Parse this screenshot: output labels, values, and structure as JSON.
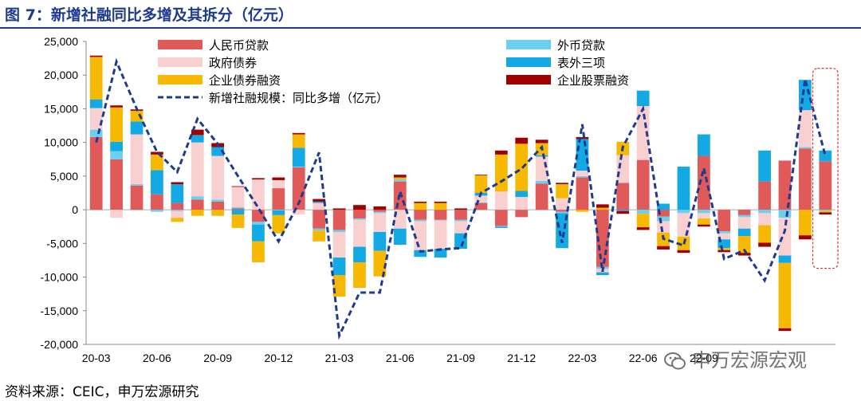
{
  "header": {
    "title": "图 7：新增社融同比多增及其拆分（亿元）"
  },
  "footer": {
    "source": "资料来源：CEIC，申万宏源研究"
  },
  "watermark": {
    "text": "申万宏源宏观"
  },
  "chart_data": {
    "type": "bar",
    "stacked": true,
    "ylim": [
      -20000,
      25000
    ],
    "yticks": [
      25000,
      20000,
      15000,
      10000,
      5000,
      0,
      -5000,
      -10000,
      -15000,
      -20000
    ],
    "ytick_labels": [
      "25,000",
      "20,000",
      "15,000",
      "10,000",
      "5,000",
      "0",
      "-5,000",
      "-10,000",
      "-15,000",
      "-20,000"
    ],
    "x": [
      "20-03",
      "20-04",
      "20-05",
      "20-06",
      "20-07",
      "20-08",
      "20-09",
      "20-10",
      "20-11",
      "20-12",
      "21-01",
      "21-02",
      "21-03",
      "21-04",
      "21-05",
      "21-06",
      "21-07",
      "21-08",
      "21-09",
      "21-10",
      "21-11",
      "21-12",
      "22-01",
      "22-02",
      "22-03",
      "22-04",
      "22-05",
      "22-06",
      "22-07",
      "22-08",
      "22-09",
      "22-10",
      "22-11",
      "22-12",
      "23-01",
      "23-02",
      "23-03"
    ],
    "xtick_labels": [
      {
        "index": 0,
        "label": "20-03"
      },
      {
        "index": 3,
        "label": "20-06"
      },
      {
        "index": 6,
        "label": "20-09"
      },
      {
        "index": 9,
        "label": "20-12"
      },
      {
        "index": 12,
        "label": "21-03"
      },
      {
        "index": 15,
        "label": "21-06"
      },
      {
        "index": 18,
        "label": "21-09"
      },
      {
        "index": 21,
        "label": "21-12"
      },
      {
        "index": 24,
        "label": "22-03"
      },
      {
        "index": 27,
        "label": "22-06"
      },
      {
        "index": 30,
        "label": "22-09"
      }
    ],
    "series": [
      {
        "name": "人民币贷款",
        "color": "#e05a5a",
        "legend_col": 0,
        "legend_row": 0,
        "values": [
          10800,
          7500,
          3600,
          2300,
          1000,
          1500,
          1200,
          200,
          -1800,
          3200,
          6300,
          -2800,
          -3000,
          -1300,
          -300,
          4200,
          -1500,
          -1500,
          -1500,
          1000,
          -2400,
          -1100,
          3900,
          -300,
          4800,
          -8500,
          4000,
          7400,
          -1000,
          0,
          8000,
          -3200,
          -800,
          4200,
          7300,
          9100,
          7200
        ]
      },
      {
        "name": "外币贷款",
        "color": "#6bd0ef",
        "legend_col": 1,
        "legend_row": 0,
        "values": [
          1100,
          1200,
          200,
          -300,
          -200,
          500,
          300,
          200,
          -400,
          -100,
          100,
          -300,
          -300,
          -200,
          -200,
          300,
          -200,
          -100,
          -200,
          100,
          -100,
          0,
          400,
          -200,
          200,
          -300,
          0,
          -600,
          -700,
          -500,
          -500,
          -300,
          -300,
          -500,
          -1200,
          200,
          -200
        ]
      },
      {
        "name": "政府债券",
        "color": "#f8d0d0",
        "legend_col": 0,
        "legend_row": 1,
        "values": [
          3200,
          -1200,
          7400,
          0,
          -1000,
          8000,
          6500,
          3000,
          4500,
          1200,
          -700,
          1000,
          -3800,
          -4000,
          -2800,
          -2800,
          -4300,
          -4200,
          -1800,
          1000,
          2700,
          1900,
          3600,
          1700,
          800,
          -500,
          4100,
          8000,
          -1700,
          -3500,
          -800,
          -900,
          -1700,
          -1800,
          -5600,
          5500,
          0
        ]
      },
      {
        "name": "表外三项",
        "color": "#13a9e4",
        "legend_col": 1,
        "legend_row": 1,
        "values": [
          1300,
          1400,
          1900,
          3600,
          2800,
          1100,
          1300,
          -700,
          -2500,
          -700,
          2800,
          200,
          -2600,
          -2300,
          -2800,
          -2400,
          -1000,
          -1300,
          -2300,
          400,
          -200,
          900,
          200,
          -5200,
          4700,
          -400,
          -200,
          2300,
          900,
          6400,
          3200,
          -1300,
          -1100,
          4600,
          -1100,
          4500,
          1600
        ]
      },
      {
        "name": "企业债券融资",
        "color": "#f6b800",
        "legend_col": 0,
        "legend_row": 2,
        "values": [
          6300,
          5100,
          1600,
          2300,
          -600,
          -900,
          -900,
          -2000,
          -3100,
          -2700,
          2000,
          -1600,
          -3200,
          -3800,
          -3800,
          300,
          1000,
          1000,
          0,
          2600,
          5500,
          7000,
          1800,
          2100,
          -300,
          300,
          2000,
          -2000,
          -2000,
          -2000,
          -900,
          -300,
          -2500,
          -2600,
          -9700,
          -3800,
          -200
        ]
      },
      {
        "name": "企业股票融资",
        "color": "#a00000",
        "legend_col": 1,
        "legend_row": 2,
        "values": [
          200,
          300,
          200,
          400,
          300,
          800,
          600,
          100,
          200,
          400,
          200,
          400,
          200,
          700,
          500,
          400,
          200,
          200,
          200,
          100,
          600,
          900,
          500,
          200,
          300,
          500,
          -400,
          -400,
          -500,
          -400,
          -300,
          -300,
          -400,
          -600,
          -400,
          -600,
          -300
        ]
      }
    ],
    "line": {
      "name": "新增社融规模：同比多增（亿元）",
      "color": "#1f3b8f",
      "legend_col": 0,
      "legend_row": 3,
      "values": [
        10000,
        22000,
        15000,
        8600,
        5600,
        13500,
        9800,
        5000,
        300,
        -4700,
        1000,
        8500,
        -18700,
        -12300,
        -12300,
        2700,
        -6200,
        -5900,
        -5700,
        2500,
        4200,
        6100,
        9300,
        -4900,
        12700,
        -9200,
        9300,
        15000,
        -4300,
        -5300,
        6200,
        -7300,
        -6000,
        -10500,
        -3100,
        19400,
        8000
      ]
    },
    "highlight": {
      "from_index": 36,
      "to_index": 36,
      "color": "#e03030"
    }
  }
}
